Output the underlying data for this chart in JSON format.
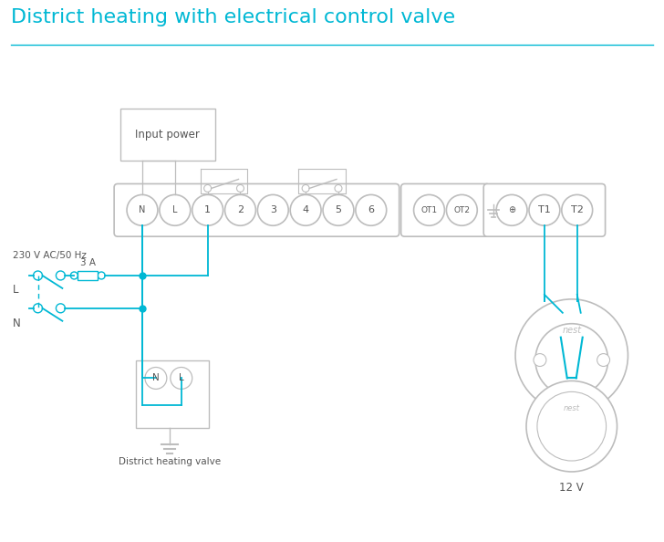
{
  "title": "District heating with electrical control valve",
  "title_color": "#00b8d4",
  "title_fontsize": 16,
  "bg_color": "#ffffff",
  "wire_color": "#00b8d4",
  "gray_color": "#9e9e9e",
  "light_gray": "#bdbdbd",
  "text_color": "#555555",
  "dashed_color": "#00b8d4",
  "terminal_labels_main": [
    "N",
    "L",
    "1",
    "2",
    "3",
    "4",
    "5",
    "6"
  ],
  "terminal_labels_ot": [
    "OT1",
    "OT2"
  ],
  "terminal_labels_t": [
    "T1",
    "T2"
  ],
  "figsize": [
    7.28,
    5.94
  ],
  "dpi": 100
}
